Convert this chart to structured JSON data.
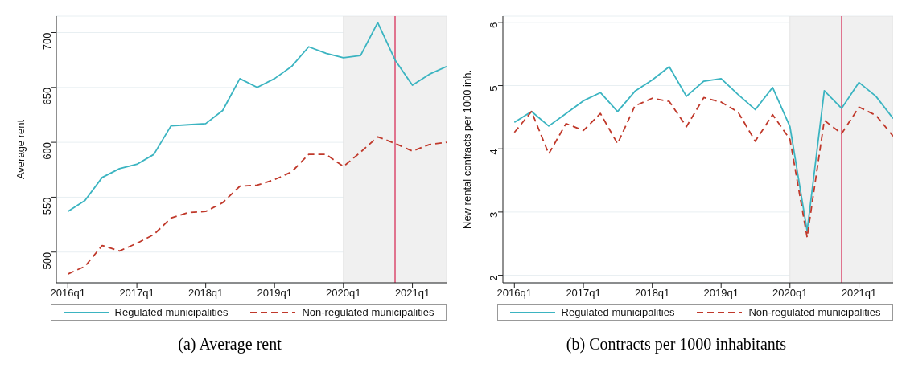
{
  "chart_data": [
    {
      "type": "line",
      "title": "(a) Average rent",
      "ylabel": "Average rent",
      "x": [
        "2016-01",
        "2016-04",
        "2016-07",
        "2016-10",
        "2017-01",
        "2017-04",
        "2017-07",
        "2017-10",
        "2018-01",
        "2018-04",
        "2018-07",
        "2018-10",
        "2019-01",
        "2019-04",
        "2019-07",
        "2019-10",
        "2020-01",
        "2020-04",
        "2020-07",
        "2020-10",
        "2021-01",
        "2021-04",
        "2021-07"
      ],
      "series": [
        {
          "name": "Regulated  municipalities",
          "color": "#3bb4c1",
          "line_style": "solid",
          "values": [
            537,
            547,
            568,
            576,
            580,
            589,
            615,
            616,
            617,
            629,
            658,
            650,
            658,
            669,
            687,
            681,
            677,
            679,
            709,
            675,
            652,
            662,
            669
          ]
        },
        {
          "name": "Non-regulated municipalities",
          "color": "#c0392b",
          "line_style": "dashed",
          "values": [
            480,
            487,
            506,
            501,
            508,
            516,
            531,
            536,
            537,
            545,
            560,
            561,
            566,
            573,
            589,
            589,
            578,
            591,
            605,
            599,
            592,
            598,
            600
          ]
        }
      ],
      "xlim": [
        "2015-11",
        "2021-07"
      ],
      "xticks": [
        {
          "value": "2016-01",
          "label": "2016q1"
        },
        {
          "value": "2017-01",
          "label": "2017q1"
        },
        {
          "value": "2018-01",
          "label": "2018q1"
        },
        {
          "value": "2019-01",
          "label": "2019q1"
        },
        {
          "value": "2020-01",
          "label": "2020q1"
        },
        {
          "value": "2021-01",
          "label": "2021q1"
        }
      ],
      "ylim": [
        472,
        715
      ],
      "yticks": [
        500,
        550,
        600,
        650,
        700
      ],
      "ref_lines": [
        {
          "axis": "x",
          "value": "2020-10",
          "color": "#d6204e"
        }
      ],
      "bands": [
        {
          "axis": "x",
          "from": "2020-01",
          "to": "2021-07",
          "color": "#f0f0f0"
        }
      ],
      "grid": "y",
      "legend": "bottom",
      "marker": "none"
    },
    {
      "type": "line",
      "title": "(b) Contracts per 1000 inhabitants",
      "ylabel": "New rental contracts per 1000 inh.",
      "x": [
        "2016-01",
        "2016-04",
        "2016-07",
        "2016-10",
        "2017-01",
        "2017-04",
        "2017-07",
        "2017-10",
        "2018-01",
        "2018-04",
        "2018-07",
        "2018-10",
        "2019-01",
        "2019-04",
        "2019-07",
        "2019-10",
        "2020-01",
        "2020-04",
        "2020-07",
        "2020-10",
        "2021-01",
        "2021-04",
        "2021-07"
      ],
      "series": [
        {
          "name": "Regulated  municipalities",
          "color": "#3bb4c1",
          "line_style": "solid",
          "values": [
            4.42,
            4.59,
            4.36,
            4.56,
            4.76,
            4.89,
            4.59,
            4.91,
            5.09,
            5.3,
            4.83,
            5.07,
            5.11,
            4.86,
            4.62,
            4.97,
            4.35,
            2.7,
            4.92,
            4.64,
            5.05,
            4.83,
            4.48
          ]
        },
        {
          "name": "Non-regulated municipalities",
          "color": "#c0392b",
          "line_style": "dashed",
          "values": [
            4.26,
            4.59,
            3.92,
            4.4,
            4.29,
            4.56,
            4.08,
            4.68,
            4.8,
            4.75,
            4.35,
            4.81,
            4.74,
            4.58,
            4.12,
            4.54,
            4.15,
            2.6,
            4.45,
            4.24,
            4.66,
            4.53,
            4.2
          ]
        }
      ],
      "xlim": [
        "2015-11",
        "2021-07"
      ],
      "xticks": [
        {
          "value": "2016-01",
          "label": "2016q1"
        },
        {
          "value": "2017-01",
          "label": "2017q1"
        },
        {
          "value": "2018-01",
          "label": "2018q1"
        },
        {
          "value": "2019-01",
          "label": "2019q1"
        },
        {
          "value": "2020-01",
          "label": "2020q1"
        },
        {
          "value": "2021-01",
          "label": "2021q1"
        }
      ],
      "ylim": [
        1.88,
        6.1
      ],
      "yticks": [
        2,
        3,
        4,
        5,
        6
      ],
      "ref_lines": [
        {
          "axis": "x",
          "value": "2020-10",
          "color": "#d6204e"
        }
      ],
      "bands": [
        {
          "axis": "x",
          "from": "2020-01",
          "to": "2021-07",
          "color": "#f0f0f0"
        }
      ],
      "grid": "y",
      "legend": "bottom",
      "marker": "none"
    }
  ]
}
